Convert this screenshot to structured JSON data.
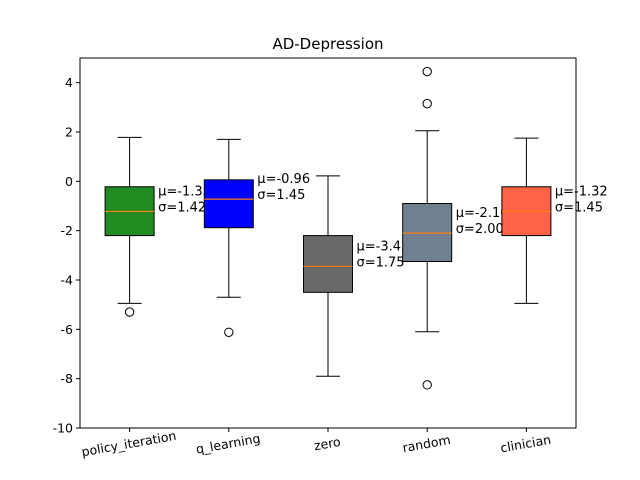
{
  "chart_data": {
    "type": "boxplot",
    "title": "AD-Depression",
    "xlabel": "",
    "ylabel": "",
    "ylim": [
      -10,
      5
    ],
    "yticks": [
      -10,
      -8,
      -6,
      -4,
      -2,
      0,
      2,
      4
    ],
    "grid": false,
    "categories": [
      "policy_iteration",
      "q_learning",
      "zero",
      "random",
      "clinician"
    ],
    "boxes": [
      {
        "category": "policy_iteration",
        "color": "#228b22",
        "whisker_low": -4.95,
        "q1": -2.2,
        "median": -1.22,
        "q3": -0.22,
        "whisker_high": 1.78,
        "outliers": [
          -5.3
        ],
        "annotation": [
          "μ=-1.35",
          "σ=1.42"
        ]
      },
      {
        "category": "q_learning",
        "color": "#0000ff",
        "whisker_low": -4.7,
        "q1": -1.88,
        "median": -0.72,
        "q3": 0.06,
        "whisker_high": 1.7,
        "outliers": [
          -6.12
        ],
        "annotation": [
          "μ=-0.96",
          "σ=1.45"
        ]
      },
      {
        "category": "zero",
        "color": "#696969",
        "whisker_low": -7.9,
        "q1": -4.5,
        "median": -3.45,
        "q3": -2.2,
        "whisker_high": 0.22,
        "outliers": [],
        "annotation": [
          "μ=-3.43",
          "σ=1.75"
        ]
      },
      {
        "category": "random",
        "color": "#708090",
        "whisker_low": -6.1,
        "q1": -3.25,
        "median": -2.1,
        "q3": -0.9,
        "whisker_high": 2.05,
        "outliers": [
          3.15,
          4.45,
          -8.25
        ],
        "annotation": [
          "μ=-2.10",
          "σ=2.00"
        ]
      },
      {
        "category": "clinician",
        "color": "#ff6347",
        "whisker_low": -4.95,
        "q1": -2.2,
        "median": -1.22,
        "q3": -0.22,
        "whisker_high": 1.75,
        "outliers": [],
        "annotation": [
          "μ=-1.32",
          "σ=1.45"
        ]
      }
    ]
  }
}
